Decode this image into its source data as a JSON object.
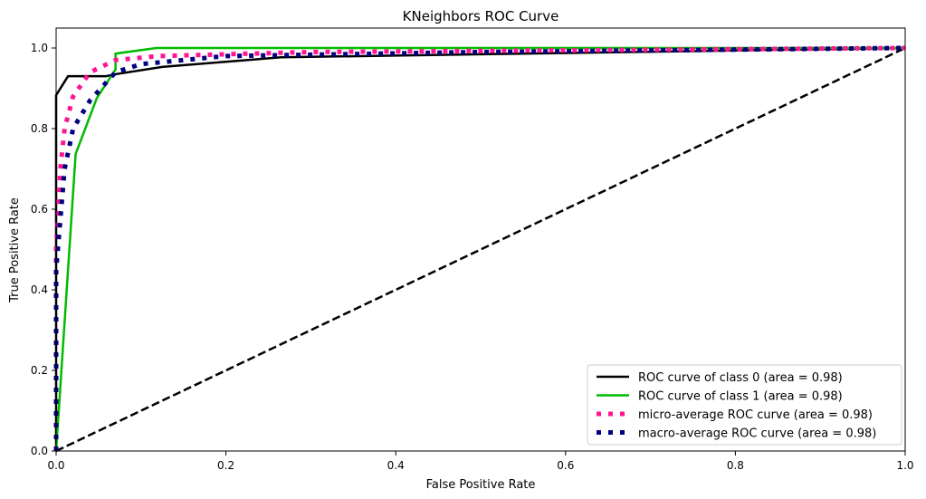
{
  "chart_data": {
    "type": "line",
    "title": "KNeighbors ROC Curve",
    "xlabel": "False Positive Rate",
    "ylabel": "True Positive Rate",
    "xlim": [
      0,
      1
    ],
    "ylim": [
      0,
      1.05
    ],
    "xticks": [
      "0.0",
      "0.2",
      "0.4",
      "0.6",
      "0.8",
      "1.0"
    ],
    "yticks": [
      "0.0",
      "0.2",
      "0.4",
      "0.6",
      "0.8",
      "1.0"
    ],
    "grid": false,
    "legend_position": "lower-right",
    "series": [
      {
        "name": "ROC curve of class 0 (area = 0.98)",
        "color": "#000000",
        "style": "solid",
        "x": [
          0,
          0,
          0.014,
          0.059,
          0.07,
          0.125,
          0.265,
          1.0
        ],
        "y": [
          0,
          0.883,
          0.93,
          0.93,
          0.935,
          0.953,
          0.977,
          1.0
        ]
      },
      {
        "name": "ROC curve of class 1 (area = 0.98)",
        "color": "#00bb00",
        "style": "solid",
        "x": [
          0,
          0.023,
          0.048,
          0.07,
          0.07,
          0.118,
          1.0
        ],
        "y": [
          0,
          0.737,
          0.876,
          0.947,
          0.986,
          1.0,
          1.0
        ]
      },
      {
        "name": "micro-average ROC curve (area = 0.98)",
        "color": "#ff1493",
        "style": "dotted",
        "x": [
          0,
          0,
          0.005,
          0.01,
          0.02,
          0.04,
          0.07,
          0.12,
          0.3,
          1.0
        ],
        "y": [
          0,
          0.5,
          0.7,
          0.8,
          0.88,
          0.94,
          0.97,
          0.98,
          0.99,
          1.0
        ]
      },
      {
        "name": "macro-average ROC curve (area = 0.98)",
        "color": "#000080",
        "style": "dotted",
        "x": [
          0,
          0,
          0.01,
          0.02,
          0.04,
          0.07,
          0.1,
          0.2,
          0.5,
          1.0
        ],
        "y": [
          0,
          0.45,
          0.7,
          0.8,
          0.87,
          0.94,
          0.96,
          0.98,
          0.99,
          1.0
        ]
      },
      {
        "color": "#000000",
        "style": "dashed",
        "x": [
          0,
          1
        ],
        "y": [
          0,
          1
        ]
      }
    ]
  }
}
